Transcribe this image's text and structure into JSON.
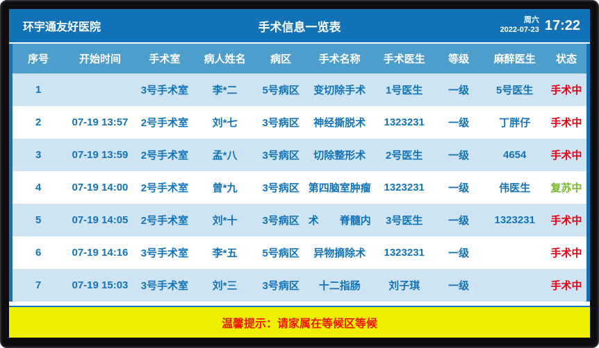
{
  "header": {
    "hospital_name": "环宇通友好医院",
    "title": "手术信息一览表",
    "weekday": "周六",
    "date": "2022-07-23",
    "time": "17:22"
  },
  "table": {
    "columns": [
      "序号",
      "开始时间",
      "手术室",
      "病人姓名",
      "病区",
      "手术名称",
      "手术医生",
      "等级",
      "麻醉医生",
      "状态"
    ],
    "rows": [
      [
        "1",
        "",
        "3号手术室",
        "李*二",
        "5号病区",
        "变切除手术",
        "1号医生",
        "一级",
        "5号医生",
        "手术中"
      ],
      [
        "2",
        "07-19 13:57",
        "2号手术室",
        "刘*七",
        "3号病区",
        "神经撕脱术",
        "1323231",
        "一级",
        "丁胖仔",
        "手术中"
      ],
      [
        "3",
        "07-19 13:59",
        "2号手术室",
        "孟*八",
        "3号病区",
        "切除整形术",
        "2号医生",
        "一级",
        "4654",
        "手术中"
      ],
      [
        "4",
        "07-19 14:00",
        "2号手术室",
        "曾*九",
        "3号病区",
        "第四脑室肿瘤",
        "1323231",
        "一级",
        "伟医生",
        "复苏中"
      ],
      [
        "5",
        "07-19 14:05",
        "2号手术室",
        "刘*十",
        "3号病区",
        "术　　脊髓内",
        "3号医生",
        "一级",
        "1323231",
        "手术中"
      ],
      [
        "6",
        "07-19 14:16",
        "3号手术室",
        "李*五",
        "5号病区",
        "异物摘除术",
        "1323231",
        "一级",
        "",
        "手术中"
      ],
      [
        "7",
        "07-19 15:03",
        "3号手术室",
        "刘*三",
        "3号病区",
        "十二指肠",
        "刘子琪",
        "一级",
        "",
        "手术中"
      ]
    ],
    "status_colors": {
      "手术中": "#e60012",
      "复苏中": "#76b82a"
    }
  },
  "footer": {
    "notice": "温馨提示：请家属在等候区等候"
  },
  "colors": {
    "header_bg": "#1172b8",
    "table_header_bg": "#4d9dcd",
    "row_alt_bg": "#cfe4f2",
    "cell_text": "#1173b9",
    "notice_bg": "#eef000",
    "notice_text": "#f01800"
  }
}
